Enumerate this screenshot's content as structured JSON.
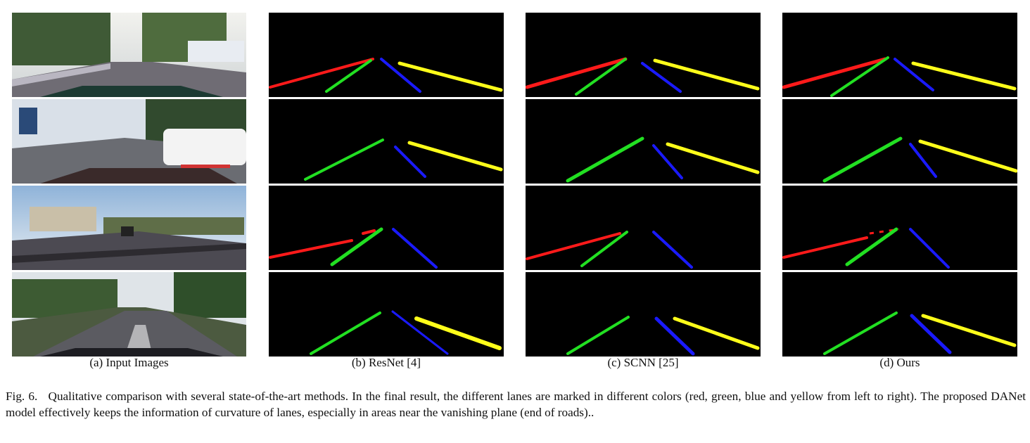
{
  "columns": [
    {
      "label": "(a)  Input Images"
    },
    {
      "label": "(b)  ResNet [4]"
    },
    {
      "label": "(c)  SCNN [25]"
    },
    {
      "label": "(d)  Ours"
    }
  ],
  "caption": {
    "figure_number": "Fig. 6.",
    "text": "Qualitative comparison with several state-of-the-art methods. In the final result, the different lanes are marked in different colors (red, green, blue and yellow from left to right). The proposed DANet model effectively keeps the information of curvature of lanes, especially in areas near the vanishing plane (end of roads).."
  },
  "lane_colors": {
    "lane1": "#ff1a1a",
    "lane2": "#22e022",
    "lane3": "#1a1aff",
    "lane4": "#ffff1a"
  }
}
